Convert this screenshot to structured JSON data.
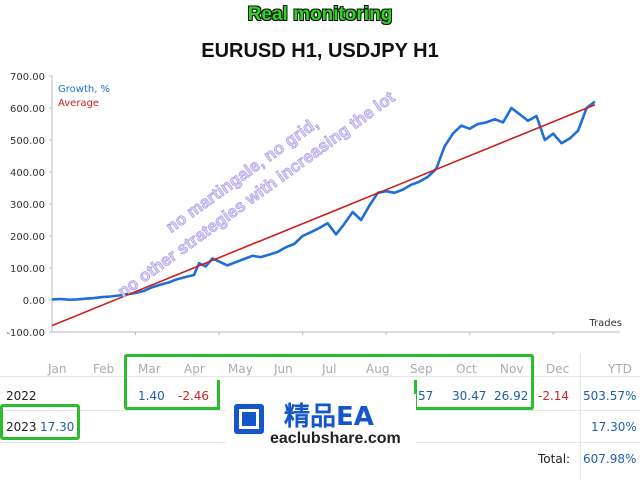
{
  "header": {
    "title": "Real monitoring",
    "subtitle": "EURUSD H1, USDJPY H1"
  },
  "watermark": {
    "line1": "no martingale, no grid,",
    "line2": "no other strategies with increasing the lot"
  },
  "chart_data": {
    "type": "line",
    "xlabel": "Trades",
    "ylabel": "",
    "xlim": [
      0,
      340
    ],
    "ylim": [
      -100,
      700
    ],
    "xticks": [
      "50",
      "100",
      "150",
      "200",
      "250",
      "300"
    ],
    "yticks": [
      "-100.00",
      "0.00",
      "100.00",
      "200.00",
      "300.00",
      "400.00",
      "500.00",
      "600.00",
      "700.00"
    ],
    "legend": "top-left",
    "grid": false,
    "series": [
      {
        "name": "Growth, %",
        "color": "#1e6fd9",
        "x": [
          0,
          5,
          10,
          15,
          20,
          25,
          30,
          35,
          40,
          45,
          50,
          55,
          60,
          65,
          70,
          75,
          80,
          85,
          88,
          92,
          96,
          100,
          105,
          110,
          115,
          120,
          125,
          130,
          135,
          140,
          145,
          150,
          155,
          160,
          165,
          170,
          175,
          180,
          185,
          190,
          195,
          200,
          205,
          210,
          215,
          220,
          225,
          230,
          235,
          240,
          245,
          250,
          255,
          260,
          265,
          270,
          275,
          280,
          285,
          290,
          295,
          300,
          305,
          310,
          315,
          320,
          325
        ],
        "y": [
          2,
          3,
          1,
          2,
          4,
          6,
          9,
          11,
          14,
          18,
          22,
          28,
          40,
          48,
          55,
          65,
          72,
          78,
          115,
          105,
          130,
          120,
          108,
          118,
          128,
          138,
          134,
          142,
          150,
          165,
          175,
          200,
          212,
          225,
          240,
          205,
          238,
          275,
          250,
          295,
          335,
          340,
          335,
          345,
          360,
          370,
          385,
          410,
          480,
          520,
          545,
          535,
          550,
          555,
          565,
          555,
          600,
          580,
          560,
          575,
          500,
          520,
          490,
          505,
          530,
          600,
          620
        ]
      },
      {
        "name": "Average",
        "color": "#cc1f1f",
        "x": [
          0,
          325
        ],
        "y": [
          -80,
          610
        ]
      }
    ]
  },
  "table": {
    "months": [
      "Jan",
      "Feb",
      "Mar",
      "Apr",
      "May",
      "Jun",
      "Jul",
      "Aug",
      "Sep",
      "Oct",
      "Nov",
      "Dec",
      "YTD"
    ],
    "row2022": {
      "year": "2022",
      "mar": "1.40",
      "apr": "-2.46",
      "sep": "57",
      "oct": "30.47",
      "nov": "26.92",
      "dec": "-2.14",
      "ytd": "503.57%"
    },
    "row2023": {
      "year": "2023",
      "jan": "17.30",
      "ytd": "17.30%"
    },
    "total_label": "Total:",
    "total_value": "607.98%"
  },
  "logo": {
    "brand": "精品EA",
    "site": "eaclubshare.com"
  }
}
